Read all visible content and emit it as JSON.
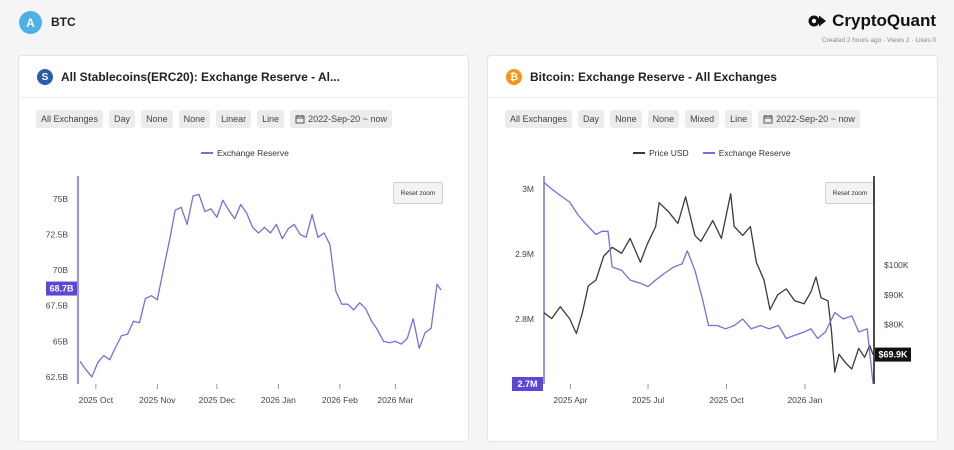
{
  "header": {
    "avatar_letter": "A",
    "title": "BTC",
    "brand": "CryptoQuant",
    "meta": "Created 2 hours ago · Views 2 · Likes 0"
  },
  "cards": [
    {
      "title": "All Stablecoins(ERC20): Exchange Reserve - Al...",
      "icon_letter": "S",
      "icon_color": "#2a5ea8",
      "chips": [
        "All Exchanges",
        "Day",
        "None",
        "None",
        "Linear",
        "Line",
        "2022-Sep-20 ~ now"
      ],
      "reset_label": "Reset zoom"
    },
    {
      "title": "Bitcoin: Exchange Reserve - All Exchanges",
      "icon_letter": "₿",
      "icon_color": "#f7931a",
      "chips": [
        "All Exchanges",
        "Day",
        "None",
        "None",
        "Mixed",
        "Line",
        "2022-Sep-20 ~ now"
      ],
      "reset_label": "Reset zoom"
    }
  ],
  "chart_data": [
    {
      "type": "line",
      "legend": [
        "Exchange Reserve"
      ],
      "series": [
        {
          "name": "Exchange Reserve",
          "color": "#7b6ce0",
          "points": [
            [
              "2025-09-23",
              63.6
            ],
            [
              "2025-09-26",
              63.0
            ],
            [
              "2025-09-29",
              62.5
            ],
            [
              "2025-10-02",
              63.5
            ],
            [
              "2025-10-05",
              64.0
            ],
            [
              "2025-10-08",
              63.7
            ],
            [
              "2025-10-11",
              64.6
            ],
            [
              "2025-10-14",
              65.4
            ],
            [
              "2025-10-17",
              65.5
            ],
            [
              "2025-10-20",
              66.4
            ],
            [
              "2025-10-23",
              66.3
            ],
            [
              "2025-10-26",
              68.0
            ],
            [
              "2025-10-29",
              68.2
            ],
            [
              "2025-11-01",
              67.9
            ],
            [
              "2025-11-04",
              70.0
            ],
            [
              "2025-11-07",
              72.0
            ],
            [
              "2025-11-10",
              74.2
            ],
            [
              "2025-11-13",
              74.4
            ],
            [
              "2025-11-16",
              73.2
            ],
            [
              "2025-11-19",
              75.2
            ],
            [
              "2025-11-22",
              75.3
            ],
            [
              "2025-11-25",
              74.1
            ],
            [
              "2025-11-28",
              74.3
            ],
            [
              "2025-12-01",
              73.7
            ],
            [
              "2025-12-04",
              74.9
            ],
            [
              "2025-12-07",
              74.2
            ],
            [
              "2025-12-10",
              73.6
            ],
            [
              "2025-12-13",
              74.6
            ],
            [
              "2025-12-16",
              74.0
            ],
            [
              "2025-12-19",
              73.0
            ],
            [
              "2025-12-22",
              72.6
            ],
            [
              "2025-12-25",
              73.0
            ],
            [
              "2025-12-28",
              72.6
            ],
            [
              "2025-12-31",
              73.2
            ],
            [
              "2026-01-03",
              72.2
            ],
            [
              "2026-01-06",
              72.9
            ],
            [
              "2026-01-09",
              73.2
            ],
            [
              "2026-01-12",
              72.5
            ],
            [
              "2026-01-15",
              72.3
            ],
            [
              "2026-01-18",
              73.9
            ],
            [
              "2026-01-21",
              72.3
            ],
            [
              "2026-01-24",
              72.6
            ],
            [
              "2026-01-27",
              71.8
            ],
            [
              "2026-01-30",
              68.5
            ],
            [
              "2026-02-02",
              67.6
            ],
            [
              "2026-02-05",
              67.6
            ],
            [
              "2026-02-08",
              67.2
            ],
            [
              "2026-02-11",
              67.7
            ],
            [
              "2026-02-14",
              67.3
            ],
            [
              "2026-02-17",
              66.4
            ],
            [
              "2026-02-20",
              65.8
            ],
            [
              "2026-02-23",
              65.0
            ],
            [
              "2026-02-26",
              64.9
            ],
            [
              "2026-03-01",
              65.0
            ],
            [
              "2026-03-04",
              64.8
            ],
            [
              "2026-03-07",
              65.2
            ],
            [
              "2026-03-10",
              66.6
            ],
            [
              "2026-03-13",
              64.5
            ],
            [
              "2026-03-16",
              65.6
            ],
            [
              "2026-03-19",
              65.9
            ],
            [
              "2026-03-22",
              69.0
            ],
            [
              "2026-03-24",
              68.6
            ]
          ]
        }
      ],
      "x_range": [
        "2025-09-22",
        "2026-03-25"
      ],
      "x_ticks": [
        {
          "date": "2025-10-01",
          "label": "2025 Oct"
        },
        {
          "date": "2025-11-01",
          "label": "2025 Nov"
        },
        {
          "date": "2025-12-01",
          "label": "2025 Dec"
        },
        {
          "date": "2026-01-01",
          "label": "2026 Jan"
        },
        {
          "date": "2026-02-01",
          "label": "2026 Feb"
        },
        {
          "date": "2026-03-01",
          "label": "2026 Mar"
        }
      ],
      "y_range": [
        62,
        76.6
      ],
      "y_ticks": [
        {
          "value": 75,
          "label": "75B"
        },
        {
          "value": 72.5,
          "label": "72.5B"
        },
        {
          "value": 70,
          "label": "70B"
        },
        {
          "value": 67.5,
          "label": "67.5B"
        },
        {
          "value": 65,
          "label": "65B"
        },
        {
          "value": 62.5,
          "label": "62.5B"
        }
      ],
      "current_value": {
        "value": 68.7,
        "label": "68.7B",
        "color": "#5b47d8"
      },
      "grid": false
    },
    {
      "type": "line",
      "legend": [
        "Price USD",
        "Exchange Reserve"
      ],
      "series": [
        {
          "name": "Price USD",
          "color": "#3a3a3a",
          "axis": "right",
          "points": [
            [
              "2025-03-01",
              84
            ],
            [
              "2025-03-10",
              82
            ],
            [
              "2025-03-20",
              86
            ],
            [
              "2025-03-31",
              82
            ],
            [
              "2025-04-08",
              77
            ],
            [
              "2025-04-15",
              84
            ],
            [
              "2025-04-22",
              93
            ],
            [
              "2025-05-01",
              95
            ],
            [
              "2025-05-10",
              103
            ],
            [
              "2025-05-20",
              106
            ],
            [
              "2025-05-31",
              104
            ],
            [
              "2025-06-10",
              109
            ],
            [
              "2025-06-22",
              101
            ],
            [
              "2025-06-30",
              107
            ],
            [
              "2025-07-10",
              113
            ],
            [
              "2025-07-14",
              121
            ],
            [
              "2025-07-25",
              118
            ],
            [
              "2025-08-05",
              114
            ],
            [
              "2025-08-14",
              123
            ],
            [
              "2025-08-25",
              110
            ],
            [
              "2025-09-01",
              108
            ],
            [
              "2025-09-15",
              115
            ],
            [
              "2025-09-25",
              109
            ],
            [
              "2025-10-06",
              124
            ],
            [
              "2025-10-10",
              113
            ],
            [
              "2025-10-20",
              110
            ],
            [
              "2025-10-29",
              113
            ],
            [
              "2025-11-05",
              101
            ],
            [
              "2025-11-14",
              95
            ],
            [
              "2025-11-21",
              85
            ],
            [
              "2025-11-30",
              90
            ],
            [
              "2025-12-10",
              92
            ],
            [
              "2025-12-20",
              88
            ],
            [
              "2025-12-31",
              87
            ],
            [
              "2026-01-08",
              91
            ],
            [
              "2026-01-14",
              96
            ],
            [
              "2026-01-20",
              89
            ],
            [
              "2026-01-28",
              88
            ],
            [
              "2026-02-01",
              78
            ],
            [
              "2026-02-05",
              64
            ],
            [
              "2026-02-10",
              70
            ],
            [
              "2026-02-18",
              67
            ],
            [
              "2026-02-25",
              65
            ],
            [
              "2026-03-05",
              72
            ],
            [
              "2026-03-12",
              69
            ],
            [
              "2026-03-18",
              73
            ],
            [
              "2026-03-22",
              69.9
            ]
          ]
        },
        {
          "name": "Exchange Reserve",
          "color": "#7b6ce0",
          "axis": "left",
          "points": [
            [
              "2025-03-01",
              3.01
            ],
            [
              "2025-03-10",
              3.0
            ],
            [
              "2025-03-20",
              2.99
            ],
            [
              "2025-03-31",
              2.98
            ],
            [
              "2025-04-10",
              2.96
            ],
            [
              "2025-04-20",
              2.945
            ],
            [
              "2025-05-01",
              2.93
            ],
            [
              "2025-05-08",
              2.935
            ],
            [
              "2025-05-15",
              2.935
            ],
            [
              "2025-05-20",
              2.88
            ],
            [
              "2025-05-31",
              2.875
            ],
            [
              "2025-06-10",
              2.86
            ],
            [
              "2025-06-22",
              2.855
            ],
            [
              "2025-07-01",
              2.85
            ],
            [
              "2025-07-10",
              2.86
            ],
            [
              "2025-07-20",
              2.87
            ],
            [
              "2025-07-31",
              2.88
            ],
            [
              "2025-08-10",
              2.885
            ],
            [
              "2025-08-16",
              2.905
            ],
            [
              "2025-08-25",
              2.875
            ],
            [
              "2025-09-03",
              2.83
            ],
            [
              "2025-09-10",
              2.79
            ],
            [
              "2025-09-20",
              2.79
            ],
            [
              "2025-09-30",
              2.785
            ],
            [
              "2025-10-10",
              2.79
            ],
            [
              "2025-10-20",
              2.8
            ],
            [
              "2025-10-30",
              2.785
            ],
            [
              "2025-11-10",
              2.79
            ],
            [
              "2025-11-20",
              2.785
            ],
            [
              "2025-12-01",
              2.79
            ],
            [
              "2025-12-10",
              2.77
            ],
            [
              "2025-12-20",
              2.775
            ],
            [
              "2025-12-31",
              2.78
            ],
            [
              "2026-01-08",
              2.785
            ],
            [
              "2026-01-16",
              2.77
            ],
            [
              "2026-01-25",
              2.78
            ],
            [
              "2026-02-05",
              2.81
            ],
            [
              "2026-02-15",
              2.8
            ],
            [
              "2026-02-25",
              2.805
            ],
            [
              "2026-03-05",
              2.78
            ],
            [
              "2026-03-15",
              2.785
            ],
            [
              "2026-03-22",
              2.7
            ]
          ]
        }
      ],
      "x_range": [
        "2025-03-01",
        "2026-03-23"
      ],
      "x_ticks": [
        {
          "date": "2025-04-01",
          "label": "2025 Apr"
        },
        {
          "date": "2025-07-01",
          "label": "2025 Jul"
        },
        {
          "date": "2025-10-01",
          "label": "2025 Oct"
        },
        {
          "date": "2026-01-01",
          "label": "2026 Jan"
        }
      ],
      "y_range": [
        2.7,
        3.02
      ],
      "y_ticks": [
        {
          "value": 3.0,
          "label": "3M"
        },
        {
          "value": 2.9,
          "label": "2.9M"
        },
        {
          "value": 2.8,
          "label": "2.8M"
        }
      ],
      "y2_range": [
        60,
        130
      ],
      "y2_ticks": [
        {
          "value": 100,
          "label": "$100K"
        },
        {
          "value": 90,
          "label": "$90K"
        },
        {
          "value": 80,
          "label": "$80K"
        }
      ],
      "current_value": {
        "value": 2.7,
        "label": "2.7M",
        "color": "#5b47d8"
      },
      "current_value_right": {
        "value": 69.9,
        "label": "$69.9K",
        "color": "#111111"
      },
      "grid": false
    }
  ]
}
